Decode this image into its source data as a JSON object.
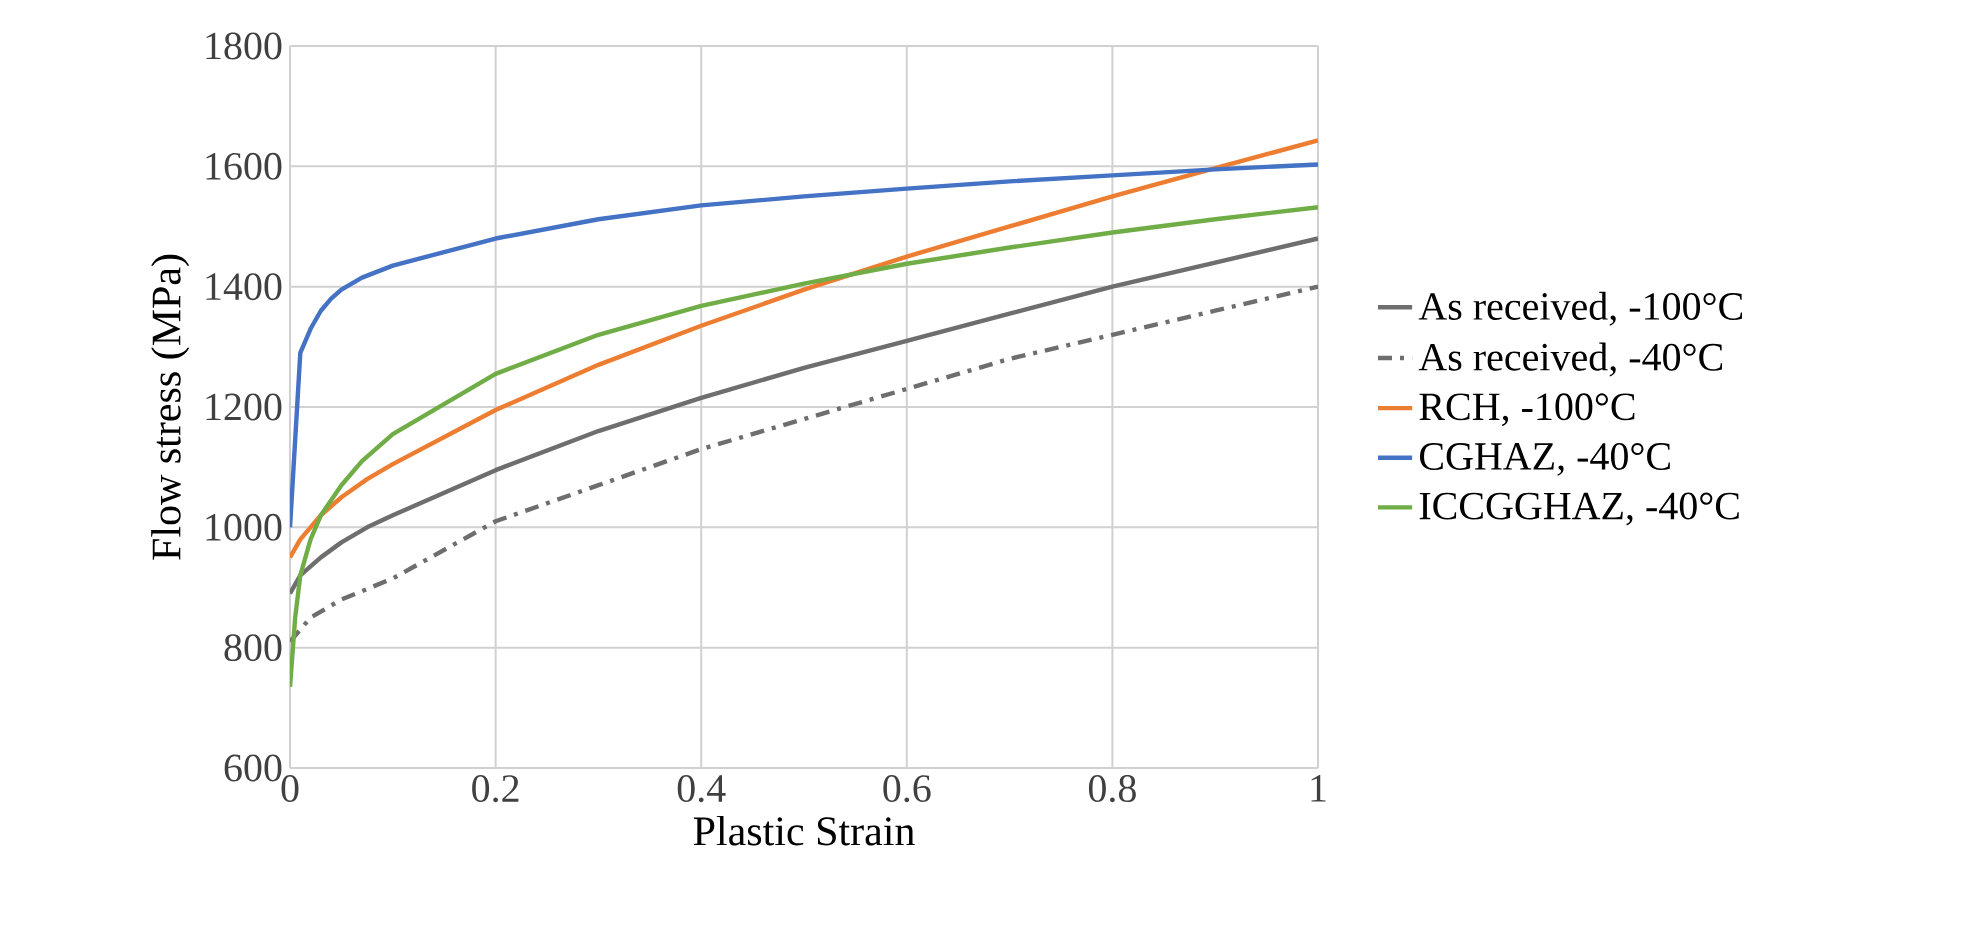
{
  "chart_data": {
    "type": "line",
    "xlabel": "Plastic Strain",
    "ylabel": "Flow stress (MPa)",
    "xlim": [
      0,
      1
    ],
    "ylim": [
      600,
      1800
    ],
    "xticks": [
      0,
      0.2,
      0.4,
      0.6,
      0.8,
      1
    ],
    "yticks": [
      600,
      800,
      1000,
      1200,
      1400,
      1600,
      1800
    ],
    "grid": true,
    "legend": "right",
    "series": [
      {
        "name": "As received, -100°C",
        "color": "#6e6e6e",
        "line_style": "solid",
        "x": [
          0,
          0.01,
          0.03,
          0.05,
          0.075,
          0.1,
          0.2,
          0.3,
          0.4,
          0.5,
          0.6,
          0.7,
          0.8,
          0.9,
          1
        ],
        "values": [
          890,
          920,
          950,
          975,
          1000,
          1020,
          1095,
          1160,
          1215,
          1265,
          1310,
          1355,
          1400,
          1440,
          1480
        ]
      },
      {
        "name": "As received, -40°C",
        "color": "#6e6e6e",
        "line_style": "dashed",
        "x": [
          0,
          0.02,
          0.05,
          0.1,
          0.2,
          0.3,
          0.4,
          0.5,
          0.6,
          0.7,
          0.8,
          0.9,
          1
        ],
        "values": [
          810,
          850,
          880,
          915,
          1010,
          1070,
          1130,
          1180,
          1230,
          1280,
          1320,
          1360,
          1400
        ]
      },
      {
        "name": "RCH, -100°C",
        "color": "#ed7d31",
        "line_style": "solid",
        "x": [
          0,
          0.01,
          0.03,
          0.05,
          0.075,
          0.1,
          0.2,
          0.3,
          0.4,
          0.5,
          0.6,
          0.7,
          0.8,
          0.9,
          1
        ],
        "values": [
          950,
          980,
          1020,
          1050,
          1080,
          1105,
          1195,
          1270,
          1335,
          1395,
          1450,
          1500,
          1550,
          1597,
          1643
        ]
      },
      {
        "name": "CGHAZ, -40°C",
        "color": "#4472c4",
        "line_style": "solid",
        "x": [
          0,
          0.01,
          0.02,
          0.03,
          0.04,
          0.05,
          0.07,
          0.1,
          0.2,
          0.3,
          0.4,
          0.5,
          0.6,
          0.7,
          0.8,
          0.9,
          1
        ],
        "values": [
          1000,
          1290,
          1330,
          1360,
          1380,
          1395,
          1415,
          1435,
          1480,
          1512,
          1535,
          1550,
          1563,
          1575,
          1585,
          1595,
          1603
        ]
      },
      {
        "name": "ICCGGHAZ, -40°C",
        "color": "#70ad47",
        "line_style": "solid",
        "x": [
          0,
          0.005,
          0.01,
          0.02,
          0.03,
          0.05,
          0.07,
          0.1,
          0.2,
          0.3,
          0.4,
          0.5,
          0.6,
          0.7,
          0.8,
          0.9,
          1
        ],
        "values": [
          735,
          850,
          920,
          980,
          1020,
          1070,
          1110,
          1155,
          1255,
          1320,
          1368,
          1405,
          1438,
          1465,
          1490,
          1512,
          1532
        ]
      }
    ]
  }
}
